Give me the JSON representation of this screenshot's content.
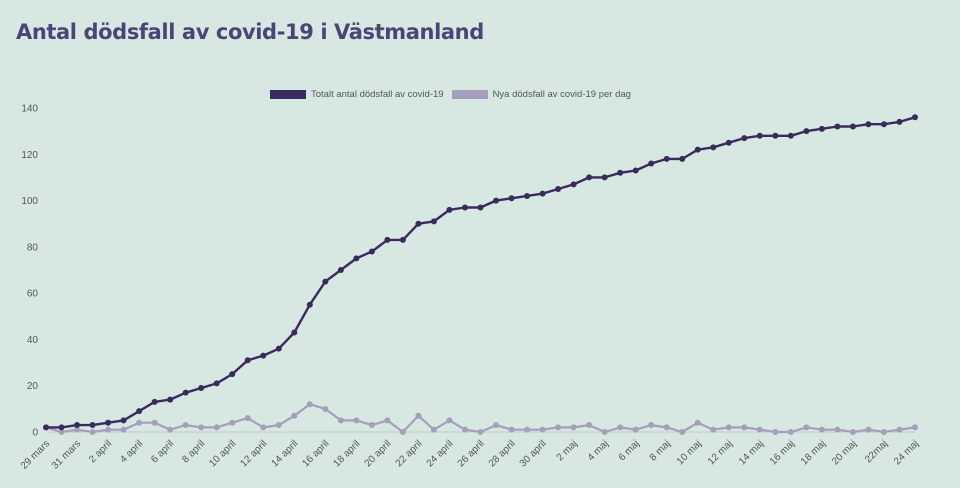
{
  "page_title": "Antal dödsfall av covid-19 i Västmanland",
  "legend": {
    "total_label": "Totalt antal dödsfall av covid-19",
    "daily_label": "Nya dödsfall av covid-19 per dag"
  },
  "colors": {
    "background": "#d7e8e2",
    "total": "#3a2a5e",
    "daily": "#a59ebd",
    "title": "#4a4477"
  },
  "chart_data": {
    "type": "line",
    "title": "Antal dödsfall av covid-19 i Västmanland",
    "xlabel": "",
    "ylabel": "",
    "ylim": [
      0,
      140
    ],
    "yticks": [
      0,
      20,
      40,
      60,
      80,
      100,
      120,
      140
    ],
    "grid": false,
    "legend_position": "top-center",
    "x": [
      "29 mars",
      "30 mars",
      "31 mars",
      "1 april",
      "2 april",
      "3 april",
      "4 april",
      "5 april",
      "6 april",
      "7 april",
      "8 april",
      "9 april",
      "10 april",
      "11 april",
      "12 april",
      "13 april",
      "14 april",
      "15 april",
      "16 april",
      "17 april",
      "18 april",
      "19 april",
      "20 april",
      "21 april",
      "22 april",
      "23 april",
      "24 april",
      "25 april",
      "26 april",
      "27 april",
      "28 april",
      "29 april",
      "30 april",
      "1 maj",
      "2 maj",
      "3 maj",
      "4 maj",
      "5 maj",
      "6 maj",
      "7 maj",
      "8 maj",
      "9 maj",
      "10 maj",
      "11 maj",
      "12 maj",
      "13 maj",
      "14 maj",
      "15 maj",
      "16 maj",
      "17 maj",
      "18 maj",
      "19 maj",
      "20 maj",
      "21 maj",
      "22maj",
      "23 maj",
      "24 maj"
    ],
    "x_tick_labels": [
      "29 mars",
      "31 mars",
      "2 april",
      "4 april",
      "6 april",
      "8 april",
      "10 april",
      "12 april",
      "14 april",
      "16 april",
      "18 april",
      "20 april",
      "22 april",
      "24 april",
      "26 april",
      "28 april",
      "30 april",
      "2 maj",
      "4 maj",
      "6 maj",
      "8 maj",
      "10 maj",
      "12 maj",
      "14 maj",
      "16 maj",
      "18 maj",
      "20 maj",
      "22maj",
      "24 maj"
    ],
    "series": [
      {
        "name": "Totalt antal dödsfall av covid-19",
        "values": [
          2,
          2,
          3,
          3,
          4,
          5,
          9,
          13,
          14,
          17,
          19,
          21,
          25,
          31,
          33,
          36,
          43,
          55,
          65,
          70,
          75,
          78,
          83,
          83,
          90,
          91,
          96,
          97,
          97,
          100,
          101,
          102,
          103,
          105,
          107,
          110,
          110,
          112,
          113,
          116,
          118,
          118,
          122,
          123,
          125,
          127,
          128,
          128,
          128,
          130,
          131,
          132,
          132,
          133,
          133,
          134,
          136
        ]
      },
      {
        "name": "Nya dödsfall av covid-19 per dag",
        "values": [
          2,
          0,
          1,
          0,
          1,
          1,
          4,
          4,
          1,
          3,
          2,
          2,
          4,
          6,
          2,
          3,
          7,
          12,
          10,
          5,
          5,
          3,
          5,
          0,
          7,
          1,
          5,
          1,
          0,
          3,
          1,
          1,
          1,
          2,
          2,
          3,
          0,
          2,
          1,
          3,
          2,
          0,
          4,
          1,
          2,
          2,
          1,
          0,
          0,
          2,
          1,
          1,
          0,
          1,
          0,
          1,
          2
        ]
      }
    ]
  }
}
